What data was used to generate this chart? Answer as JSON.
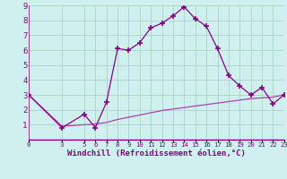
{
  "xlabel": "Windchill (Refroidissement éolien,°C)",
  "bg_color": "#d0f0f0",
  "grid_color": "#b0d8c8",
  "line_color": "#880088",
  "line_color2": "#aa44aa",
  "x_hours": [
    0,
    3,
    5,
    6,
    7,
    8,
    9,
    10,
    11,
    12,
    13,
    14,
    15,
    16,
    17,
    18,
    19,
    20,
    21,
    22,
    23
  ],
  "y_windchill": [
    3.0,
    0.8,
    1.7,
    0.8,
    2.5,
    6.1,
    6.0,
    6.5,
    7.5,
    7.8,
    8.3,
    8.9,
    8.1,
    7.6,
    6.1,
    4.3,
    3.6,
    3.0,
    3.5,
    2.4,
    3.0
  ],
  "x_temp": [
    0,
    3,
    5,
    6,
    7,
    8,
    9,
    10,
    11,
    12,
    13,
    14,
    15,
    16,
    17,
    18,
    19,
    20,
    21,
    22,
    23
  ],
  "y_temp": [
    3.0,
    0.9,
    1.0,
    1.05,
    1.15,
    1.35,
    1.5,
    1.65,
    1.8,
    1.95,
    2.05,
    2.15,
    2.25,
    2.35,
    2.45,
    2.55,
    2.65,
    2.75,
    2.8,
    2.85,
    3.0
  ],
  "ylim": [
    0,
    9
  ],
  "xlim": [
    0,
    23
  ],
  "yticks": [
    1,
    2,
    3,
    4,
    5,
    6,
    7,
    8,
    9
  ],
  "xtick_positions": [
    0,
    3,
    5,
    6,
    7,
    8,
    9,
    10,
    11,
    12,
    13,
    14,
    15,
    16,
    17,
    18,
    19,
    20,
    21,
    22,
    23
  ],
  "xtick_labels": [
    "0",
    "3",
    "5",
    "6",
    "7",
    "8",
    "9",
    "10",
    "11",
    "12",
    "13",
    "14",
    "15",
    "16",
    "17",
    "18",
    "19",
    "20",
    "21",
    "22",
    "23"
  ]
}
